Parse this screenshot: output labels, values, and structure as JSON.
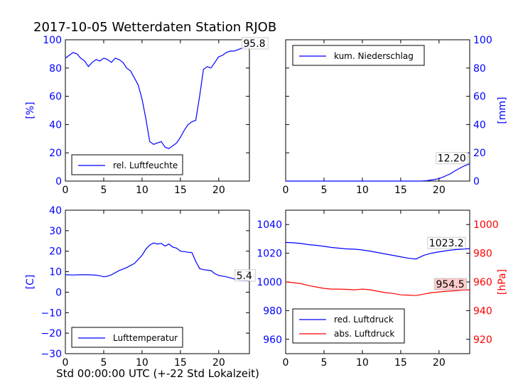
{
  "title": "2017-10-05 Wetterdaten Station RJOB",
  "xlabel": "Std 00:00:00 UTC (+-22 Std Lokalzeit)",
  "colors": {
    "blue": "#0000ff",
    "red": "#ff0000",
    "axis": "#000000",
    "annotation_bg": "#ffcccc"
  },
  "chart_data": [
    {
      "id": "humidity",
      "type": "line",
      "ylabel": "[%]",
      "ylabel_side": "left",
      "xlim": [
        0,
        24
      ],
      "ylim": [
        0,
        100
      ],
      "xticks": [
        0,
        5,
        10,
        15,
        20
      ],
      "yticks": [
        0,
        20,
        40,
        60,
        80,
        100
      ],
      "tick_color": "blue",
      "legend_placement": "lower-left",
      "annotation": {
        "text": "95.8",
        "x": 23.2,
        "y": 95.8
      },
      "series": [
        {
          "name": "rel. Luftfeuchte",
          "color": "blue",
          "x": [
            0,
            0.5,
            1,
            1.5,
            2,
            2.5,
            3,
            3.5,
            4,
            4.5,
            5,
            5.5,
            6,
            6.5,
            7,
            7.5,
            8,
            8.5,
            9,
            9.5,
            10,
            10.5,
            11,
            11.5,
            12,
            12.5,
            13,
            13.5,
            14,
            14.5,
            15,
            15.5,
            16,
            16.5,
            17,
            17.5,
            18,
            18.5,
            19,
            19.5,
            20,
            20.5,
            21,
            21.5,
            22,
            22.5,
            23,
            23.5,
            24
          ],
          "y": [
            87,
            89,
            91,
            90,
            87,
            85,
            81,
            84,
            86,
            85,
            87,
            86,
            84,
            87,
            86,
            84,
            80,
            78,
            73,
            68,
            58,
            44,
            28,
            26,
            27,
            28,
            24,
            23,
            25,
            27,
            31,
            36,
            40,
            42,
            43,
            60,
            79,
            81,
            80,
            84,
            88,
            89,
            91,
            92,
            92,
            93,
            94,
            95,
            95.8
          ]
        }
      ]
    },
    {
      "id": "precipitation",
      "type": "line",
      "ylabel": "[mm]",
      "ylabel_side": "right",
      "xlim": [
        0,
        24
      ],
      "ylim": [
        0,
        100
      ],
      "xticks": [
        0,
        5,
        10,
        15,
        20
      ],
      "yticks": [
        0,
        20,
        40,
        60,
        80,
        100
      ],
      "tick_color": "blue",
      "legend_placement": "upper-left",
      "annotation": {
        "text": "12.20",
        "x": 19.8,
        "y": 12.2
      },
      "series": [
        {
          "name": "kum. Niederschlag",
          "color": "blue",
          "x": [
            0,
            5,
            10,
            15,
            17.5,
            18.5,
            19,
            19.5,
            20,
            20.5,
            21,
            21.5,
            22,
            22.5,
            23,
            23.5,
            24
          ],
          "y": [
            0,
            0,
            0,
            0,
            0,
            0.3,
            0.8,
            1.2,
            1.8,
            2.8,
            4.0,
            5.2,
            7.0,
            8.5,
            10.0,
            11.2,
            12.2
          ]
        }
      ]
    },
    {
      "id": "temperature",
      "type": "line",
      "ylabel": "[C]",
      "ylabel_side": "left",
      "xlim": [
        0,
        24
      ],
      "ylim": [
        -30,
        40
      ],
      "xticks": [
        0,
        5,
        10,
        15,
        20
      ],
      "yticks": [
        -30,
        -20,
        -10,
        0,
        10,
        20,
        30,
        40
      ],
      "tick_color": "blue",
      "legend_placement": "lower-left",
      "annotation": {
        "text": "5.4",
        "x": 22.3,
        "y": 5.4
      },
      "series": [
        {
          "name": "Lufttemperatur",
          "color": "blue",
          "x": [
            0,
            1,
            2,
            3,
            4,
            4.5,
            5,
            5.5,
            6,
            7,
            8,
            9,
            9.5,
            10,
            10.5,
            11,
            11.5,
            12,
            12.5,
            13,
            13.5,
            14,
            14.5,
            15,
            15.5,
            16,
            16.5,
            17,
            17.5,
            18,
            19,
            19.5,
            20,
            21,
            22,
            23,
            24
          ],
          "y": [
            8.5,
            8.4,
            8.5,
            8.5,
            8.3,
            8.0,
            7.5,
            7.8,
            8.5,
            10.5,
            12.0,
            14.0,
            16.0,
            18.0,
            21.0,
            23.0,
            24.0,
            23.5,
            23.8,
            22.5,
            23.5,
            22.0,
            21.5,
            20.0,
            19.8,
            19.5,
            19.3,
            15.0,
            11.5,
            11.0,
            10.5,
            9.0,
            8.2,
            7.5,
            6.5,
            5.8,
            5.4
          ]
        }
      ]
    },
    {
      "id": "pressure",
      "type": "line",
      "ylabel": "[hPa]",
      "ylabel_side": "right",
      "xlim": [
        0,
        24
      ],
      "ylim_left": [
        950,
        1050
      ],
      "ylim_right": [
        910,
        1010
      ],
      "xticks": [
        0,
        5,
        10,
        15,
        20
      ],
      "yticks_left": [
        960,
        980,
        1000,
        1020,
        1040
      ],
      "yticks_right": [
        920,
        940,
        960,
        980,
        1000
      ],
      "tick_color_left": "blue",
      "tick_color_right": "red",
      "legend_placement": "lower-left",
      "annotations": [
        {
          "text": "1023.2",
          "x": 18.7,
          "y": 1023.2,
          "axis": "left"
        },
        {
          "text": "954.5",
          "x": 19.6,
          "y": 954.5,
          "axis": "right",
          "highlight": true
        }
      ],
      "series": [
        {
          "name": "red. Luftdruck",
          "color": "blue",
          "axis": "left",
          "x": [
            0,
            1,
            2,
            3,
            4,
            5,
            6,
            7,
            8,
            9,
            10,
            11,
            12,
            13,
            14,
            15,
            16,
            17,
            18,
            19,
            20,
            21,
            22,
            23,
            24
          ],
          "y": [
            1027.5,
            1027.3,
            1026.8,
            1026.0,
            1025.5,
            1024.8,
            1024.0,
            1023.5,
            1023.0,
            1022.8,
            1022.3,
            1021.5,
            1020.5,
            1019.5,
            1018.5,
            1017.5,
            1016.5,
            1016.0,
            1018.5,
            1020.0,
            1021.0,
            1021.8,
            1022.5,
            1022.8,
            1023.2
          ]
        },
        {
          "name": "abs. Luftdruck",
          "color": "red",
          "axis": "right",
          "x": [
            0,
            1,
            2,
            3,
            4,
            5,
            6,
            7,
            8,
            9,
            10,
            11,
            12,
            13,
            14,
            15,
            16,
            17,
            18,
            19,
            20,
            21,
            22,
            23,
            24
          ],
          "y": [
            960.0,
            959.5,
            958.8,
            957.5,
            956.5,
            955.5,
            955.0,
            955.0,
            954.8,
            954.5,
            955.0,
            954.5,
            953.5,
            952.5,
            952.0,
            951.0,
            950.8,
            950.5,
            951.5,
            952.5,
            953.0,
            953.5,
            953.8,
            954.2,
            954.5
          ]
        }
      ]
    }
  ]
}
